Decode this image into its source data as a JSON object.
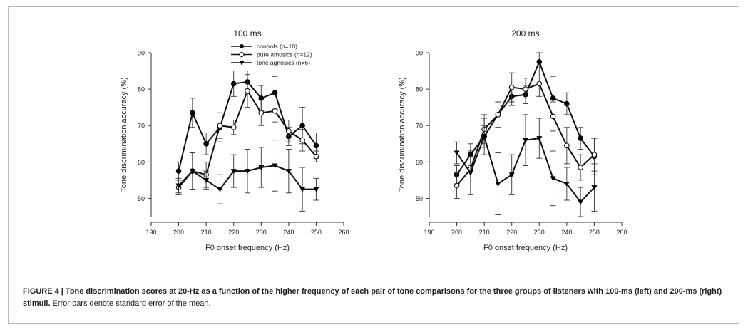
{
  "chart_data": [
    {
      "type": "line",
      "title": "100 ms",
      "xlabel": "F0 onset frequency (Hz)",
      "ylabel": "Tone discrimination accuracy (%)",
      "xlim": [
        190,
        260
      ],
      "ylim": [
        45,
        90
      ],
      "xticks": [
        190,
        200,
        210,
        220,
        230,
        240,
        250,
        260
      ],
      "yticks": [
        50,
        60,
        70,
        80,
        90
      ],
      "x": [
        200,
        205,
        210,
        215,
        220,
        225,
        230,
        235,
        240,
        245,
        250
      ],
      "legend": "top-center",
      "series": [
        {
          "name": "controls (n=10)",
          "marker": "filled-circle",
          "values": [
            57.5,
            73.5,
            65,
            69.5,
            81.5,
            82,
            77.5,
            79,
            67,
            70,
            64.5
          ],
          "err": [
            2.5,
            4,
            3,
            4,
            3.5,
            3,
            3.5,
            4.5,
            2.5,
            5,
            3.5
          ]
        },
        {
          "name": "pure amusics (n=12)",
          "marker": "open-circle",
          "values": [
            53,
            57.5,
            56.5,
            70,
            69.5,
            79.5,
            73.5,
            74,
            68.5,
            66,
            61.5
          ],
          "err": [
            2,
            5,
            3.5,
            3.5,
            2,
            4.5,
            3.5,
            3,
            3,
            3,
            1.5
          ]
        },
        {
          "name": "tone agnosics (n=6)",
          "marker": "filled-triangle-down",
          "values": [
            53.5,
            57.5,
            55,
            52.5,
            57.5,
            57.5,
            58.5,
            59,
            57.5,
            52.5,
            52.5
          ],
          "err": [
            2,
            5,
            2.5,
            4,
            4.5,
            6,
            5.5,
            7,
            6,
            6,
            3
          ]
        }
      ]
    },
    {
      "type": "line",
      "title": "200 ms",
      "xlabel": "F0 onset frequency (Hz)",
      "ylabel": "Tone discrimination accuracy (%)",
      "xlim": [
        190,
        260
      ],
      "ylim": [
        45,
        90
      ],
      "xticks": [
        190,
        200,
        210,
        220,
        230,
        240,
        250,
        260
      ],
      "yticks": [
        50,
        60,
        70,
        80,
        90
      ],
      "x": [
        200,
        205,
        210,
        215,
        220,
        225,
        230,
        235,
        240,
        245,
        250
      ],
      "series": [
        {
          "name": "controls (n=10)",
          "marker": "filled-circle",
          "values": [
            56.5,
            62,
            67,
            73,
            78,
            78.5,
            87.5,
            77.5,
            76,
            66.5,
            61.5
          ],
          "err": [
            2.5,
            3,
            3,
            3.5,
            2.5,
            2.5,
            2.5,
            6,
            3,
            3,
            5
          ]
        },
        {
          "name": "pure amusics (n=12)",
          "marker": "open-circle",
          "values": [
            53.5,
            58,
            69,
            73,
            80.5,
            80,
            81.5,
            72.5,
            64.5,
            58.5,
            62
          ],
          "err": [
            3.5,
            3.5,
            4,
            3.5,
            4,
            3,
            3.5,
            4,
            5,
            3.5,
            4.5
          ]
        },
        {
          "name": "tone agnosics (n=6)",
          "marker": "filled-triangle-down",
          "values": [
            62.5,
            57,
            67,
            54,
            56.5,
            66,
            66.5,
            55.5,
            54,
            49,
            53
          ],
          "err": [
            3,
            6,
            5,
            8.5,
            5.5,
            7,
            5.5,
            7.5,
            4.5,
            4,
            6.5
          ]
        }
      ]
    }
  ],
  "caption": {
    "bold": "FIGURE 4 | Tone discrimination scores at 20-Hz as a function of the higher frequency of each pair of tone comparisons for the three groups of listeners with 100-ms (left) and 200-ms (right) stimuli.",
    "normal": " Error bars denote standard error of the mean."
  }
}
